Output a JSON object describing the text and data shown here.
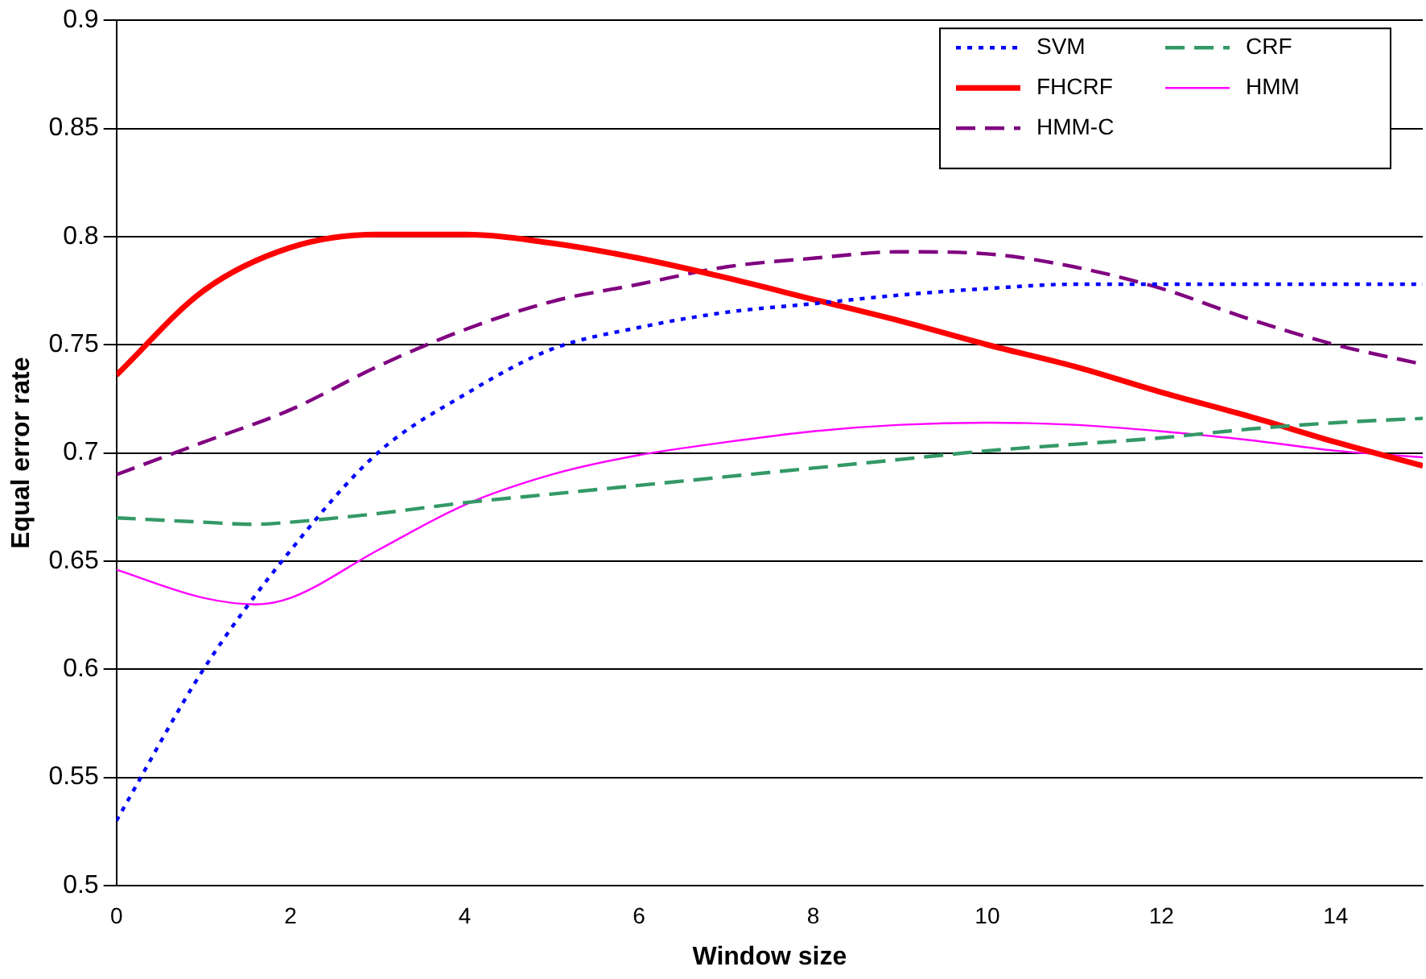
{
  "chart_data": {
    "type": "line",
    "xlabel": "Window size",
    "ylabel": "Equal error rate",
    "xlim": [
      0,
      15
    ],
    "xticks": [
      0,
      2,
      4,
      6,
      8,
      10,
      12,
      14
    ],
    "ylim": [
      0.5,
      0.9
    ],
    "yticks": [
      0.5,
      0.55,
      0.6,
      0.65,
      0.7,
      0.75,
      0.8,
      0.85,
      0.9
    ],
    "grid": "y",
    "legend": "top right",
    "marker": "none",
    "series": [
      {
        "name": "SVM",
        "color": "#0000ff",
        "line_style": "dotted",
        "x": [
          0,
          1,
          2,
          3,
          4,
          5,
          6,
          7,
          8,
          9,
          10,
          11,
          12,
          13,
          14,
          15
        ],
        "values": [
          0.53,
          0.6,
          0.655,
          0.7,
          0.727,
          0.748,
          0.758,
          0.765,
          0.769,
          0.773,
          0.776,
          0.778,
          0.778,
          0.778,
          0.778,
          0.778
        ]
      },
      {
        "name": "CRF",
        "color": "#339966",
        "line_style": "dashed",
        "x": [
          0,
          1,
          1.6,
          2,
          3,
          4,
          5,
          6,
          7,
          8,
          9,
          10,
          11,
          12,
          13,
          14,
          15
        ],
        "values": [
          0.67,
          0.668,
          0.667,
          0.668,
          0.672,
          0.677,
          0.681,
          0.685,
          0.689,
          0.693,
          0.697,
          0.701,
          0.704,
          0.707,
          0.711,
          0.714,
          0.716
        ]
      },
      {
        "name": "FHCRF",
        "color": "#ff0000",
        "line_style": "solid",
        "x": [
          0,
          1,
          2,
          3,
          4,
          5,
          6,
          7,
          8,
          9,
          10,
          11,
          12,
          13,
          14,
          15
        ],
        "values": [
          0.736,
          0.775,
          0.795,
          0.801,
          0.801,
          0.797,
          0.79,
          0.781,
          0.771,
          0.761,
          0.75,
          0.74,
          0.728,
          0.717,
          0.705,
          0.694
        ]
      },
      {
        "name": "HMM",
        "color": "#ff00ff",
        "line_style": "solid",
        "x": [
          0,
          1,
          1.6,
          2,
          3,
          4,
          5,
          6,
          7,
          8,
          9,
          10,
          11,
          12,
          13,
          14,
          15
        ],
        "values": [
          0.646,
          0.633,
          0.63,
          0.633,
          0.655,
          0.676,
          0.69,
          0.699,
          0.705,
          0.71,
          0.713,
          0.714,
          0.713,
          0.71,
          0.706,
          0.701,
          0.698
        ]
      },
      {
        "name": "HMM-C",
        "color": "#800080",
        "line_style": "dashed",
        "x": [
          0,
          1,
          2,
          3,
          4,
          5,
          6,
          7,
          8,
          9,
          10,
          11,
          12,
          13,
          14,
          15
        ],
        "values": [
          0.69,
          0.705,
          0.72,
          0.74,
          0.757,
          0.77,
          0.778,
          0.786,
          0.79,
          0.793,
          0.792,
          0.786,
          0.776,
          0.762,
          0.75,
          0.741
        ]
      }
    ]
  }
}
